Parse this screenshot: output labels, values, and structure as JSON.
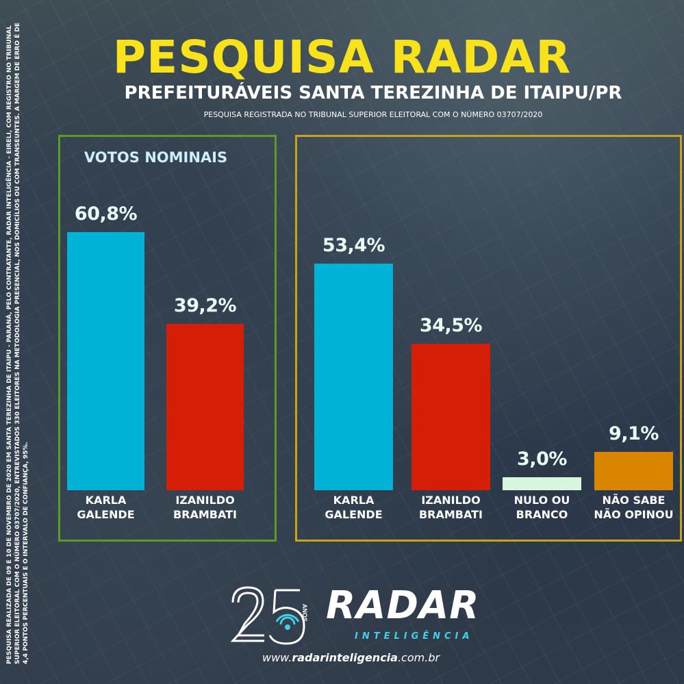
{
  "header": {
    "title": "PESQUISA RADAR",
    "subtitle": "PREFEITURÁVEIS SANTA TEREZINHA DE ITAIPU/PR",
    "registry": "PESQUISA REGISTRADA NO TRIBUNAL SUPERIOR ELEITORAL COM O NÚMERO 03707/2020"
  },
  "sidenote": "PESQUISA REALIZADA DE 09 E 10 DE NOVEMBRO DE 2020 EM SANTA TEREZINHA DE ITAIPU - PARANÁ, PELO CONTRATANTE, RADAR INTELIGÊNCIA - EIRELI, COM REGISTRO NO TRIBUNAL SUPERIOR ELEITORAL COM O NÚMERO 03707/2020, ENTREVISTADOS 330 ELEITORES NA METODOLOGIA PRESENCIAL, NOS DOMICÍLIOS OU COM TRANSEUNTES. A MARGEM DE ERRO É DE 4,4 PONTOS PERCENTUAIS E O INTERVALO DE CONFIANÇA, 95%.",
  "chart_data": [
    {
      "type": "bar",
      "title": "VOTOS NOMINAIS",
      "categories": [
        "KARLA\nGALENDE",
        "IZANILDO\nBRAMBATI"
      ],
      "values": [
        60.8,
        39.2
      ],
      "value_labels": [
        "60,8%",
        "39,2%"
      ],
      "colors": [
        "#00b2d6",
        "#d41f06"
      ],
      "unit": "%"
    },
    {
      "type": "bar",
      "title": "",
      "categories": [
        "KARLA\nGALENDE",
        "IZANILDO\nBRAMBATI",
        "NULO OU\nBRANCO",
        "NÃO SABE\nNÃO OPINOU"
      ],
      "values": [
        53.4,
        34.5,
        3.0,
        9.1
      ],
      "value_labels": [
        "53,4%",
        "34,5%",
        "3,0%",
        "9,1%"
      ],
      "colors": [
        "#00b2d6",
        "#d41f06",
        "#d6f7dd",
        "#d98500"
      ],
      "unit": "%"
    }
  ],
  "logo": {
    "number": "25",
    "anos": "ANOS",
    "brand": "RADAR",
    "brand_sub": "INTELIGÊNCIA"
  },
  "website": {
    "prefix": "www.",
    "domain": "radarinteligencia",
    "suffix": ".com.br"
  }
}
